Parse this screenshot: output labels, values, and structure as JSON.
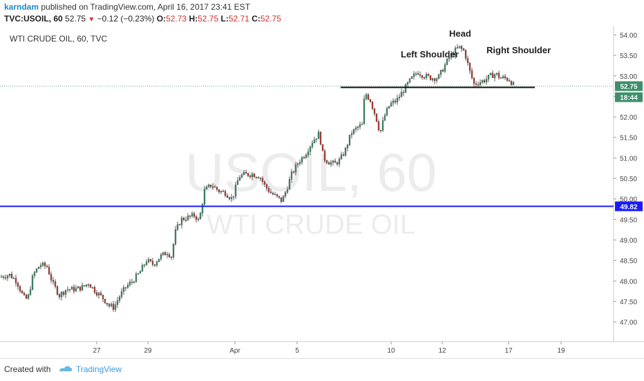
{
  "header": {
    "author": "karndam",
    "published_text": "published on TradingView.com, April 16, 2017 23:41 EST",
    "symbol": "TVC:USOIL, 60",
    "last": "52.75",
    "change": "−0.12 (−0.23%)",
    "o_label": "O:",
    "o_value": "52.73",
    "h_label": "H:",
    "h_value": "52.75",
    "l_label": "L:",
    "l_value": "52.71",
    "c_label": "C:",
    "c_value": "52.75"
  },
  "footer": {
    "created_with": "Created with",
    "brand": "TradingView"
  },
  "colors": {
    "up": "#3d8e6a",
    "down": "#b53a2f",
    "blue_line": "#1a1aff",
    "price_badge": "#3d8e6a",
    "blue_badge": "#1a1aff"
  },
  "chart_data": {
    "type": "candlestick",
    "title": "WTI CRUDE OIL, 60, TVC",
    "watermark_main": "USOIL, 60",
    "watermark_sub": "WTI CRUDE OIL",
    "ylim": [
      46.75,
      54.1
    ],
    "y_ticks": [
      "47.00",
      "47.50",
      "48.00",
      "48.50",
      "49.00",
      "49.50",
      "50.00",
      "50.50",
      "51.00",
      "51.50",
      "52.00",
      "52.50",
      "53.00",
      "53.50",
      "54.00"
    ],
    "x_ticks": [
      "27",
      "29",
      "Apr",
      "5",
      "10",
      "12",
      "17",
      "19"
    ],
    "current_price": "52.75",
    "countdown": "18:44",
    "horizontal_line": {
      "price": 49.82,
      "label": "49.82"
    },
    "neckline": {
      "price": 52.72
    },
    "annotations": [
      "Left Shoulder",
      "Head",
      "Right Shoulder"
    ],
    "close_anchors": [
      [
        0,
        48.1
      ],
      [
        14,
        48.15
      ],
      [
        24,
        48.0
      ],
      [
        34,
        47.6
      ],
      [
        40,
        47.55
      ],
      [
        48,
        48.15
      ],
      [
        58,
        48.4
      ],
      [
        68,
        48.35
      ],
      [
        76,
        47.95
      ],
      [
        86,
        47.65
      ],
      [
        96,
        47.8
      ],
      [
        110,
        47.8
      ],
      [
        120,
        47.85
      ],
      [
        128,
        47.95
      ],
      [
        138,
        47.75
      ],
      [
        148,
        47.6
      ],
      [
        158,
        47.4
      ],
      [
        165,
        47.35
      ],
      [
        172,
        47.6
      ],
      [
        182,
        47.85
      ],
      [
        192,
        48.0
      ],
      [
        202,
        48.2
      ],
      [
        212,
        48.5
      ],
      [
        222,
        48.4
      ],
      [
        232,
        48.6
      ],
      [
        242,
        48.7
      ],
      [
        248,
        48.6
      ],
      [
        254,
        49.2
      ],
      [
        262,
        49.5
      ],
      [
        272,
        49.55
      ],
      [
        282,
        49.6
      ],
      [
        288,
        49.45
      ],
      [
        296,
        50.2
      ],
      [
        306,
        50.35
      ],
      [
        316,
        50.2
      ],
      [
        326,
        50.15
      ],
      [
        336,
        50.0
      ],
      [
        346,
        50.55
      ],
      [
        356,
        50.6
      ],
      [
        366,
        50.6
      ],
      [
        376,
        50.55
      ],
      [
        384,
        50.3
      ],
      [
        392,
        50.15
      ],
      [
        400,
        50.05
      ],
      [
        408,
        49.95
      ],
      [
        414,
        50.2
      ],
      [
        422,
        50.6
      ],
      [
        432,
        50.9
      ],
      [
        442,
        51.1
      ],
      [
        452,
        51.4
      ],
      [
        462,
        51.6
      ],
      [
        468,
        51.0
      ],
      [
        476,
        50.9
      ],
      [
        484,
        50.85
      ],
      [
        492,
        50.95
      ],
      [
        500,
        51.2
      ],
      [
        508,
        51.6
      ],
      [
        518,
        51.75
      ],
      [
        524,
        51.8
      ],
      [
        528,
        52.6
      ],
      [
        536,
        52.4
      ],
      [
        544,
        52.0
      ],
      [
        550,
        51.6
      ],
      [
        556,
        52.0
      ],
      [
        564,
        52.3
      ],
      [
        574,
        52.4
      ],
      [
        584,
        52.65
      ],
      [
        594,
        52.9
      ],
      [
        604,
        53.1
      ],
      [
        614,
        53.0
      ],
      [
        624,
        52.95
      ],
      [
        634,
        52.95
      ],
      [
        642,
        53.2
      ],
      [
        650,
        53.45
      ],
      [
        658,
        53.6
      ],
      [
        664,
        53.7
      ],
      [
        672,
        53.6
      ],
      [
        680,
        53.1
      ],
      [
        686,
        52.8
      ],
      [
        694,
        52.85
      ],
      [
        702,
        52.9
      ],
      [
        710,
        53.0
      ],
      [
        718,
        53.05
      ],
      [
        724,
        52.95
      ],
      [
        730,
        52.95
      ],
      [
        738,
        52.9
      ],
      [
        744,
        52.75
      ]
    ]
  }
}
